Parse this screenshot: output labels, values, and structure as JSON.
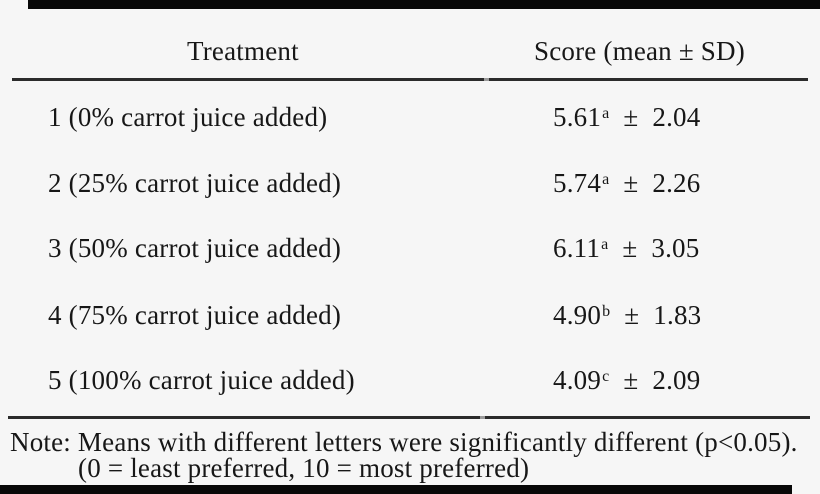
{
  "table": {
    "header": {
      "treatment": "Treatment",
      "score": "Score (mean ± SD)"
    },
    "symbols": {
      "plus_minus": "±"
    },
    "rows": [
      {
        "treatment": "1 (0% carrot juice added)",
        "mean": "5.61",
        "sig": "a",
        "sd": "2.04"
      },
      {
        "treatment": "2 (25% carrot juice added)",
        "mean": "5.74",
        "sig": "a",
        "sd": "2.26"
      },
      {
        "treatment": "3 (50% carrot juice added)",
        "mean": "6.11",
        "sig": "a",
        "sd": "3.05"
      },
      {
        "treatment": "4 (75% carrot juice added)",
        "mean": "4.90",
        "sig": "b",
        "sd": "1.83"
      },
      {
        "treatment": "5 (100% carrot juice added)",
        "mean": "4.09",
        "sig": "c",
        "sd": "2.09"
      }
    ]
  },
  "note": {
    "line1": "Note: Means with different letters were significantly different (p<0.05).",
    "line2": "(0 = least preferred, 10 = most preferred)"
  },
  "colors": {
    "background": "#f6f6f6",
    "text": "#171717",
    "rule": "#2b2b2b",
    "bar": "#080808"
  }
}
